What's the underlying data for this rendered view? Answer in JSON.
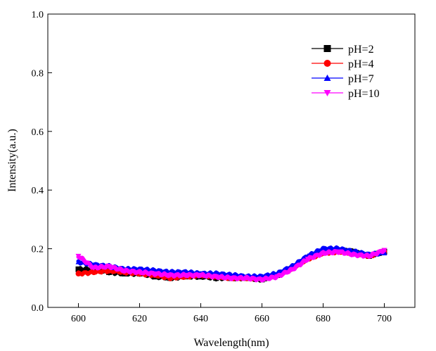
{
  "chart_data": {
    "type": "line",
    "title": "",
    "xlabel": "Wavelength(nm)",
    "ylabel": "Intensity(a.u.)",
    "xlim": [
      590,
      710
    ],
    "ylim": [
      0.0,
      1.0
    ],
    "xticks": [
      600,
      620,
      640,
      660,
      680,
      700
    ],
    "yticks": [
      0.0,
      0.2,
      0.4,
      0.6,
      0.8,
      1.0
    ],
    "xtick_labels": [
      "600",
      "620",
      "640",
      "660",
      "680",
      "700"
    ],
    "ytick_labels": [
      "0.0",
      "0.2",
      "0.4",
      "0.6",
      "0.8",
      "1.0"
    ],
    "legend_position": "top-right",
    "grid": false,
    "x": [
      600,
      605,
      610,
      615,
      620,
      625,
      630,
      635,
      640,
      645,
      650,
      655,
      660,
      665,
      670,
      675,
      680,
      685,
      690,
      695,
      700
    ],
    "series": [
      {
        "name": "pH=2",
        "color": "#000000",
        "marker": "square",
        "values": [
          0.13,
          0.13,
          0.12,
          0.115,
          0.115,
          0.105,
          0.1,
          0.105,
          0.105,
          0.1,
          0.1,
          0.1,
          0.095,
          0.11,
          0.135,
          0.17,
          0.19,
          0.195,
          0.19,
          0.175,
          0.19
        ]
      },
      {
        "name": "pH=4",
        "color": "#ff0000",
        "marker": "circle",
        "values": [
          0.115,
          0.12,
          0.125,
          0.12,
          0.115,
          0.11,
          0.1,
          0.105,
          0.11,
          0.105,
          0.1,
          0.1,
          0.1,
          0.11,
          0.135,
          0.165,
          0.185,
          0.19,
          0.185,
          0.175,
          0.19
        ]
      },
      {
        "name": "pH=7",
        "color": "#0000ff",
        "marker": "triangle-up",
        "values": [
          0.155,
          0.145,
          0.14,
          0.13,
          0.13,
          0.125,
          0.12,
          0.12,
          0.115,
          0.115,
          0.11,
          0.105,
          0.105,
          0.115,
          0.14,
          0.175,
          0.2,
          0.2,
          0.19,
          0.18,
          0.185
        ]
      },
      {
        "name": "pH=10",
        "color": "#ff00ff",
        "marker": "triangle-down",
        "values": [
          0.175,
          0.135,
          0.14,
          0.125,
          0.12,
          0.115,
          0.11,
          0.11,
          0.11,
          0.105,
          0.1,
          0.1,
          0.095,
          0.105,
          0.13,
          0.165,
          0.185,
          0.19,
          0.18,
          0.175,
          0.195
        ]
      }
    ]
  }
}
